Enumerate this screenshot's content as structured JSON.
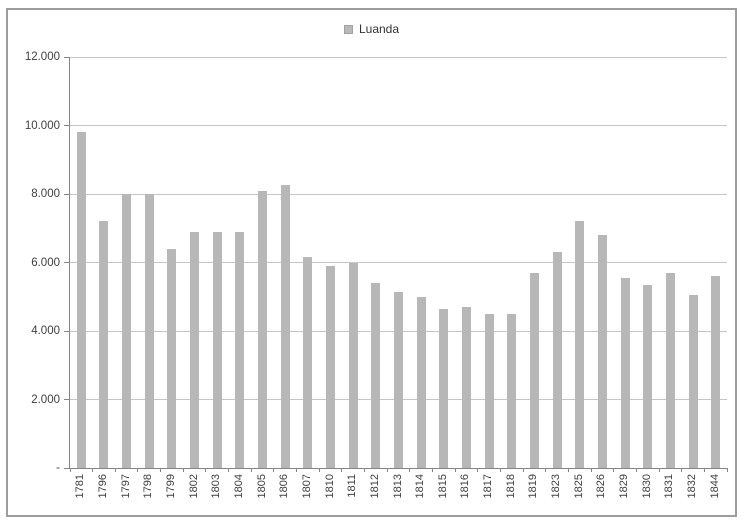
{
  "chart_data": {
    "type": "bar",
    "title": "",
    "legend_position": "top",
    "categories": [
      "1781",
      "1796",
      "1797",
      "1798",
      "1799",
      "1802",
      "1803",
      "1804",
      "1805",
      "1806",
      "1807",
      "1810",
      "1811",
      "1812",
      "1813",
      "1814",
      "1815",
      "1816",
      "1817",
      "1818",
      "1819",
      "1823",
      "1825",
      "1826",
      "1829",
      "1830",
      "1831",
      "1832",
      "1844"
    ],
    "series": [
      {
        "name": "Luanda",
        "values": [
          9800,
          7200,
          8000,
          8000,
          6400,
          6900,
          6900,
          6900,
          8100,
          8250,
          6150,
          5900,
          6000,
          5400,
          5150,
          5000,
          4650,
          4700,
          4500,
          4500,
          5700,
          6300,
          7200,
          6800,
          5550,
          5350,
          5700,
          5050,
          5600
        ]
      }
    ],
    "xlabel": "",
    "ylabel": "",
    "ylim": [
      0,
      12000
    ],
    "ytick_interval": 2000,
    "ytick_labels": [
      "-",
      "2.000",
      "4.000",
      "6.000",
      "8.000",
      "10.000",
      "12.000"
    ],
    "grid": true,
    "colors": {
      "bar": "#b7b7b7",
      "gridline": "#c6c6c6",
      "axis": "#868686",
      "text": "#3f3f3f",
      "frame_border": "#9d9d9d",
      "background": "#ffffff"
    }
  }
}
